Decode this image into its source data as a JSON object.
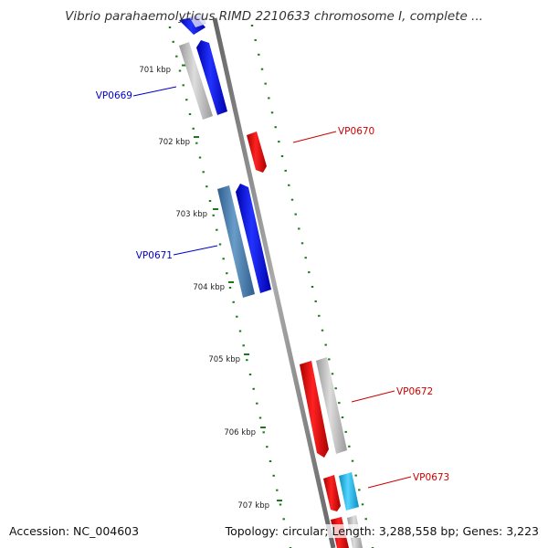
{
  "title": "Vibrio parahaemolyticus RIMD 2210633 chromosome I, complete ...",
  "footer": {
    "accession_label": "Accession:",
    "accession": "NC_004603",
    "topology_label": "Topology:",
    "topology": "circular",
    "length_label": "Length:",
    "length": "3,288,558 bp",
    "genes_label": "Genes:",
    "genes": "3,223"
  },
  "ruler": [
    {
      "label": "701 kbp"
    },
    {
      "label": "702 kbp"
    },
    {
      "label": "703 kbp"
    },
    {
      "label": "704 kbp"
    },
    {
      "label": "705 kbp"
    },
    {
      "label": "706 kbp"
    },
    {
      "label": "707 kbp"
    }
  ],
  "genes": [
    {
      "name": "VP0669",
      "strand": "reverse",
      "color": "#0000ee",
      "label_color": "#0000cc"
    },
    {
      "name": "VP0670",
      "strand": "forward",
      "color": "#ee0000",
      "label_color": "#cc0000"
    },
    {
      "name": "VP0671",
      "strand": "reverse",
      "color": "#0000ee",
      "label_color": "#0000cc"
    },
    {
      "name": "VP0672",
      "strand": "forward",
      "color": "#ee0000",
      "label_color": "#cc0000"
    },
    {
      "name": "VP0673",
      "strand": "forward",
      "color": "#ee0000",
      "label_color": "#cc0000"
    }
  ],
  "colors": {
    "backbone": "#888888",
    "tick": "#1a7a1a",
    "gc_bar": "#b8b8b8",
    "cog_blue": "#4a7fb0",
    "cog_cyan": "#22b8e8"
  }
}
